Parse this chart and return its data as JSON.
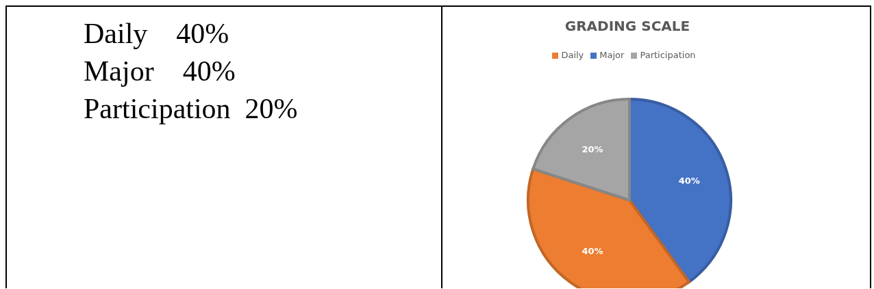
{
  "chart_data": [
    {
      "type": "other",
      "annotations": [
        "Daily    40%",
        "Major    40%",
        "Participation  20%"
      ]
    },
    {
      "type": "pie",
      "title": "GRADING SCALE",
      "categories": [
        "Major",
        "Daily",
        "Participation"
      ],
      "values": [
        40,
        40,
        20
      ],
      "colors": [
        "#4472c4",
        "#ed7d31",
        "#a5a5a5"
      ],
      "value_labels": [
        "40%",
        "40%",
        "20%"
      ],
      "legend": "top"
    }
  ]
}
